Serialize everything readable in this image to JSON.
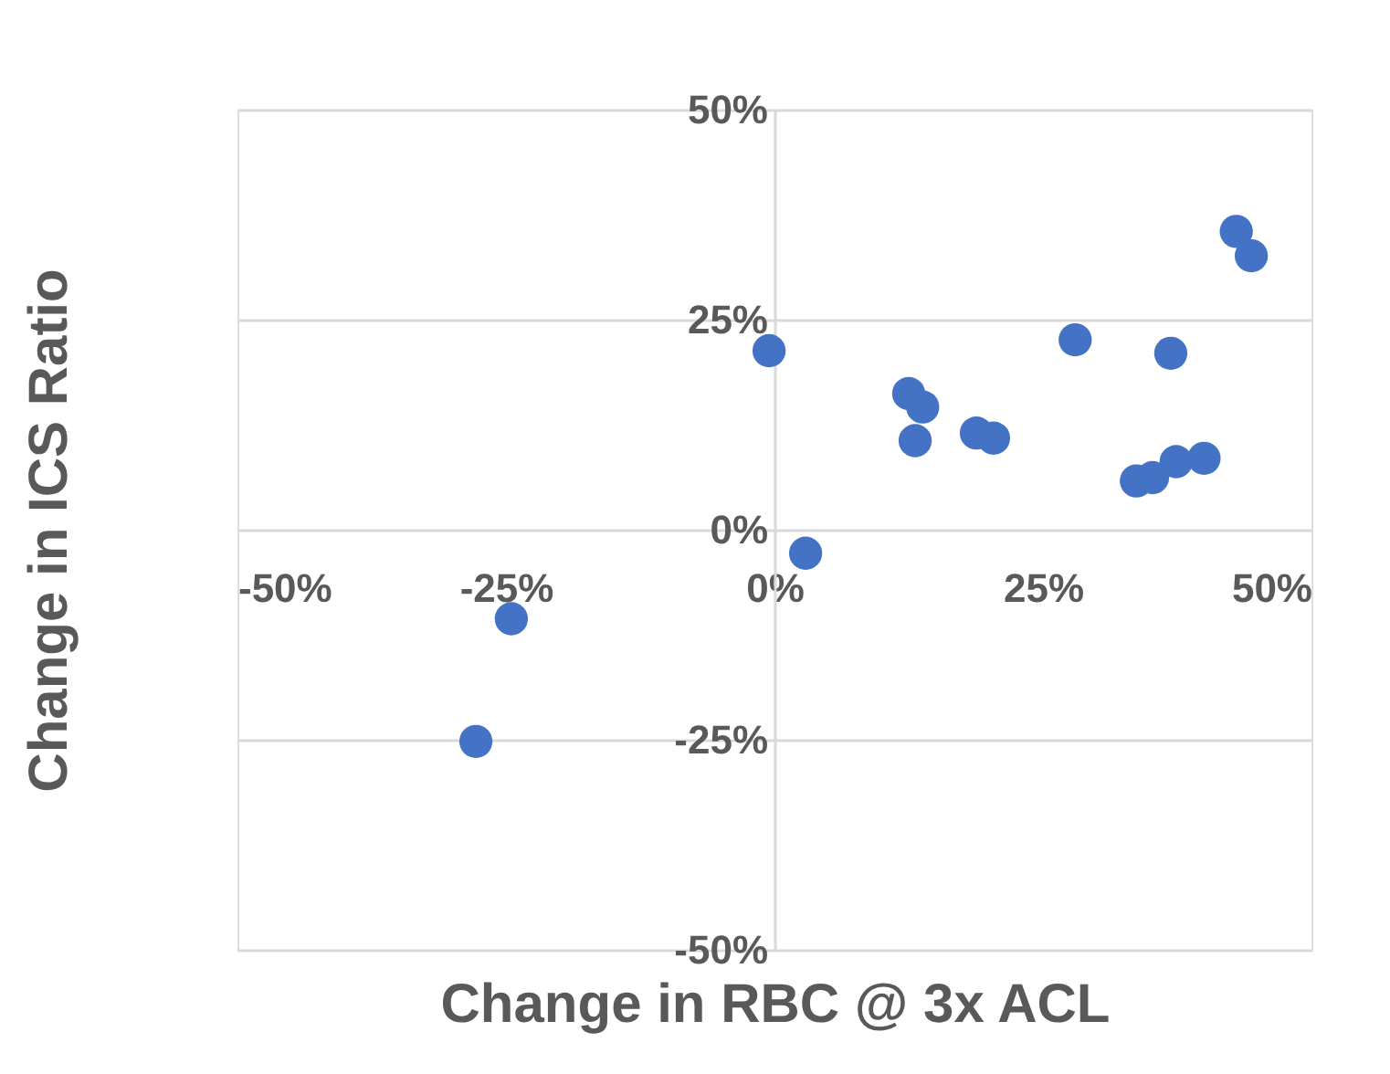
{
  "chart_data": {
    "type": "scatter",
    "xlabel": "Change in RBC @ 3x ACL",
    "ylabel": "Change in ICS Ratio",
    "x": [
      -0.5,
      2.9,
      12.5,
      13.8,
      13.1,
      18.8,
      20.4,
      28.0,
      36.9,
      33.7,
      35.2,
      37.4,
      40.0,
      43.0,
      44.4,
      -24.5,
      -27.8
    ],
    "series": [
      {
        "color": "#4472c4",
        "values": [
          21.3,
          -2.8,
          16.2,
          14.6,
          10.6,
          11.5,
          10.9,
          22.6,
          21.0,
          5.8,
          6.2,
          8.1,
          8.5,
          35.5,
          32.6,
          -10.6,
          -25.2
        ]
      }
    ],
    "xlim": [
      -50,
      50
    ],
    "ylim": [
      -50,
      50
    ],
    "xticks": [
      {
        "value": -50,
        "label": "-50%"
      },
      {
        "value": -25,
        "label": "-25%"
      },
      {
        "value": 0,
        "label": "0%"
      },
      {
        "value": 25,
        "label": "25%"
      },
      {
        "value": 50,
        "label": "50%"
      }
    ],
    "yticks": [
      {
        "value": -50,
        "label": "-50%"
      },
      {
        "value": -25,
        "label": "-25%"
      },
      {
        "value": 0,
        "label": "0%"
      },
      {
        "value": 25,
        "label": "25%"
      },
      {
        "value": 50,
        "label": "50%"
      }
    ],
    "grid": "y",
    "marker": "circle"
  }
}
